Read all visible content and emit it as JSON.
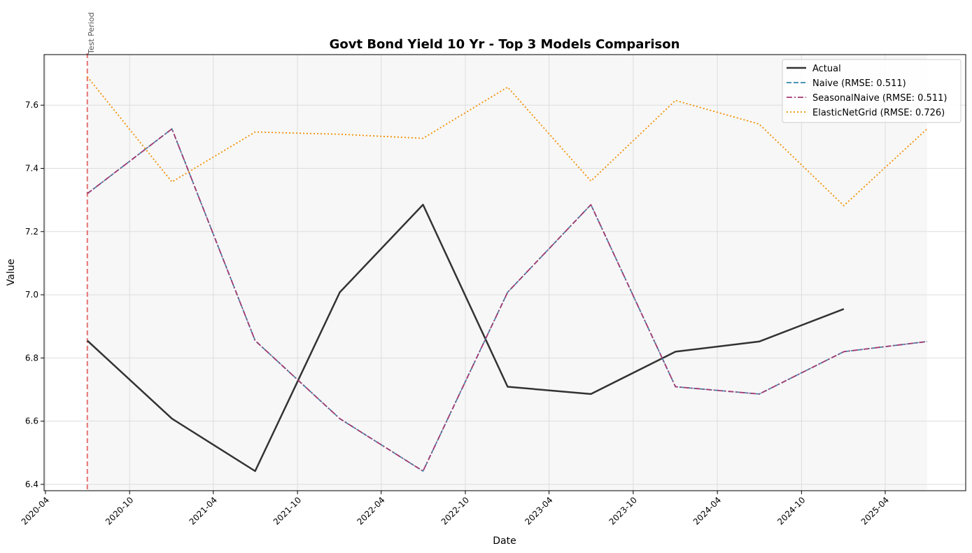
{
  "chart_data": {
    "type": "line",
    "title": "Govt Bond Yield 10 Yr - Top 3 Models Comparison",
    "xlabel": "Date",
    "ylabel": "Value",
    "x_tick_labels": [
      "2020-04",
      "2020-10",
      "2021-04",
      "2021-10",
      "2022-04",
      "2022-10",
      "2023-04",
      "2023-10",
      "2024-04",
      "2024-10",
      "2025-04"
    ],
    "y_tick_labels": [
      "6.4",
      "6.6",
      "6.8",
      "7.0",
      "7.2",
      "7.4",
      "7.6"
    ],
    "ylim": [
      6.38,
      7.76
    ],
    "xlim": [
      "2020-03-29",
      "2025-09-23"
    ],
    "grid": true,
    "legend_position": "top-right",
    "annotation": {
      "text": "Test Period",
      "x": "2020-07-01",
      "color": "#e57373"
    },
    "shaded_region": {
      "from": "2020-07-01",
      "to": "2025-07-01",
      "color": "#f2f2f2"
    },
    "series": [
      {
        "name": "Actual",
        "color": "#333333",
        "style": "solid",
        "x": [
          "2020-07-01",
          "2021-01-01",
          "2021-07-01",
          "2022-01-01",
          "2022-07-01",
          "2023-01-01",
          "2023-07-01",
          "2024-01-01",
          "2024-07-01",
          "2025-01-01"
        ],
        "values": [
          6.855,
          6.608,
          6.442,
          7.008,
          7.285,
          6.709,
          6.686,
          6.82,
          6.852,
          6.955
        ]
      },
      {
        "name": "Naive (RMSE: 0.511)",
        "color": "#2e86ab",
        "style": "dashed",
        "x": [
          "2020-07-01",
          "2021-01-01",
          "2021-07-01",
          "2022-01-01",
          "2022-07-01",
          "2023-01-01",
          "2023-07-01",
          "2024-01-01",
          "2024-07-01",
          "2025-01-01",
          "2025-07-01"
        ],
        "values": [
          7.32,
          7.525,
          6.855,
          6.608,
          6.442,
          7.008,
          7.285,
          6.709,
          6.686,
          6.82,
          6.852
        ]
      },
      {
        "name": "SeasonalNaive (RMSE: 0.511)",
        "color": "#a23b72",
        "style": "dashdot",
        "x": [
          "2020-07-01",
          "2021-01-01",
          "2021-07-01",
          "2022-01-01",
          "2022-07-01",
          "2023-01-01",
          "2023-07-01",
          "2024-01-01",
          "2024-07-01",
          "2025-01-01",
          "2025-07-01"
        ],
        "values": [
          7.32,
          7.525,
          6.855,
          6.608,
          6.442,
          7.008,
          7.285,
          6.709,
          6.686,
          6.82,
          6.852
        ]
      },
      {
        "name": "ElasticNetGrid (RMSE: 0.726)",
        "color": "#f18f01",
        "style": "dotted",
        "x": [
          "2020-07-01",
          "2021-01-01",
          "2021-07-01",
          "2022-01-01",
          "2022-07-01",
          "2023-01-01",
          "2023-07-01",
          "2024-01-01",
          "2024-07-01",
          "2025-01-01",
          "2025-07-01"
        ],
        "values": [
          7.69,
          7.357,
          7.515,
          7.508,
          7.495,
          7.657,
          7.36,
          7.615,
          7.54,
          7.282,
          7.525
        ]
      }
    ]
  }
}
